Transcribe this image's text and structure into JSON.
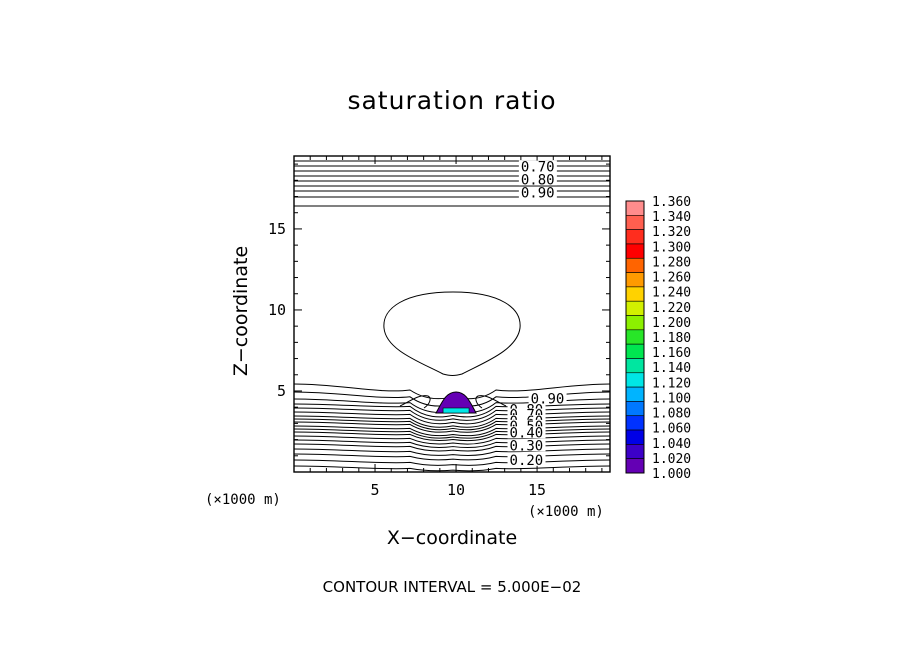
{
  "chart_data": {
    "type": "contour",
    "title": "saturation ratio",
    "xlabel": "X−coordinate",
    "ylabel": "Z−coordinate",
    "x_unit": "(×1000 m)",
    "z_unit": "(×1000 m)",
    "xlim": [
      0,
      19.5
    ],
    "ylim": [
      0,
      19.5
    ],
    "x_ticks": [
      5,
      10,
      15
    ],
    "y_ticks": [
      5,
      10,
      15
    ],
    "x_tick_labels": [
      "5",
      "10",
      "15"
    ],
    "y_tick_labels": [
      "5",
      "10",
      "15"
    ],
    "contour_interval_text": "CONTOUR INTERVAL = 5.000E−02",
    "contour_labels": [
      {
        "text": "0.70",
        "x": 14.0,
        "z": 18.6
      },
      {
        "text": "0.80",
        "x": 14.0,
        "z": 17.8
      },
      {
        "text": "0.90",
        "x": 14.0,
        "z": 17.0
      },
      {
        "text": "0.90",
        "x": 14.6,
        "z": 4.3
      },
      {
        "text": "0.80",
        "x": 13.3,
        "z": 3.6
      },
      {
        "text": "0.70",
        "x": 13.3,
        "z": 3.3
      },
      {
        "text": "0.60",
        "x": 13.3,
        "z": 2.9
      },
      {
        "text": "0.50",
        "x": 13.3,
        "z": 2.6
      },
      {
        "text": "0.40",
        "x": 13.3,
        "z": 2.2
      },
      {
        "text": "0.30",
        "x": 13.3,
        "z": 1.4
      },
      {
        "text": "0.20",
        "x": 13.3,
        "z": 0.5
      }
    ],
    "colorbar": {
      "min": 1.0,
      "max": 1.36,
      "step": 0.02,
      "labels": [
        "1.360",
        "1.340",
        "1.320",
        "1.300",
        "1.280",
        "1.260",
        "1.240",
        "1.220",
        "1.200",
        "1.180",
        "1.160",
        "1.140",
        "1.120",
        "1.100",
        "1.080",
        "1.060",
        "1.040",
        "1.020",
        "1.000"
      ],
      "colors": [
        "#ff8c8c",
        "#ff5f4f",
        "#ff2d1e",
        "#ff0000",
        "#ff6400",
        "#ff9a00",
        "#ffd200",
        "#d2f000",
        "#8cf000",
        "#28e628",
        "#00e650",
        "#00e6a0",
        "#00e6e6",
        "#00b4ff",
        "#0078ff",
        "#0032ff",
        "#0000e6",
        "#3c00c8",
        "#6400b4"
      ]
    },
    "supersaturated_region": {
      "x_center": 10.0,
      "z_top": 5.1,
      "z_base": 3.7,
      "level": 1.0
    }
  }
}
